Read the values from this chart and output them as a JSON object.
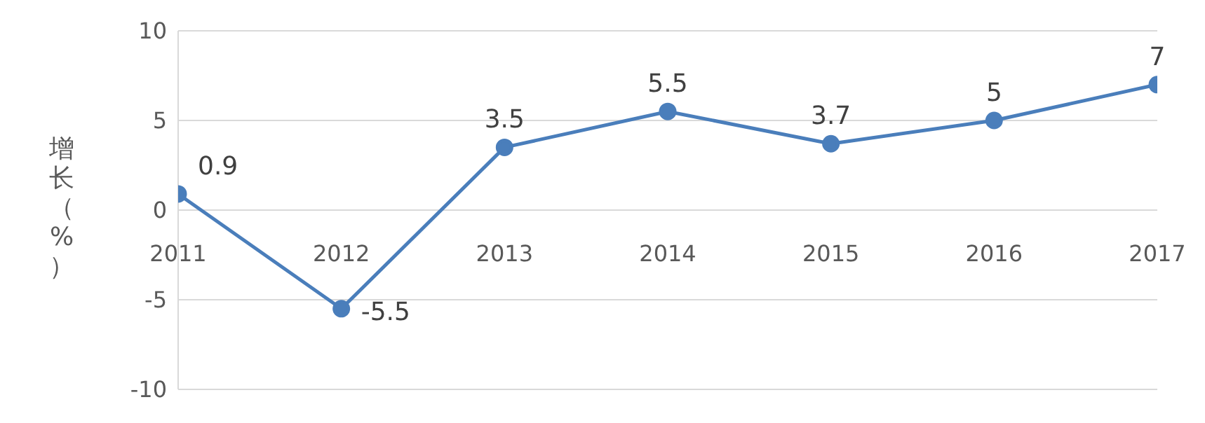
{
  "chart_data": {
    "type": "line",
    "ylabel": "增长（%）",
    "categories": [
      "2011",
      "2012",
      "2013",
      "2014",
      "2015",
      "2016",
      "2017"
    ],
    "series": [
      {
        "color": "#4a7ebb",
        "values": [
          0.9,
          -5.5,
          3.5,
          5.5,
          3.7,
          5,
          7
        ]
      }
    ],
    "ylim": [
      -10,
      10
    ],
    "yticks": [
      -10,
      -5,
      0,
      5,
      10
    ],
    "grid": "y",
    "marker": "circle",
    "data_labels": true
  }
}
